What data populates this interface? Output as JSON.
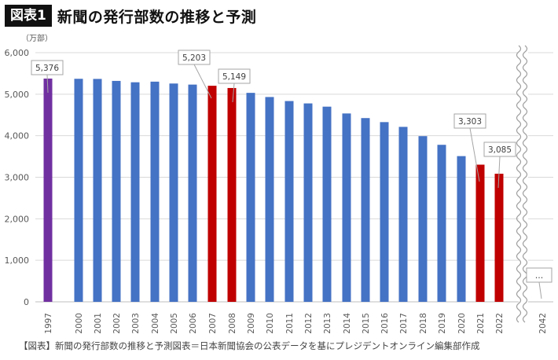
{
  "header": {
    "badge": "図表1",
    "title": "新聞の発行部数の推移と予測"
  },
  "source": "【図表】新聞の発行部数の推移と予測図表＝日本新聞協会の公表データを基にプレジデントオンライン編集部作成",
  "colors": {
    "default_bar": "#4472C4",
    "first_bar": "#7030A0",
    "highlight_bar": "#C00000",
    "grid": "#D9D9D9",
    "axis_text": "#595959"
  },
  "chart_data": {
    "type": "bar",
    "ylabel": "（万部）",
    "ylim": [
      0,
      6000
    ],
    "yticks": [
      "0",
      "1,000",
      "2,000",
      "3,000",
      "4,000",
      "5,000",
      "6,000"
    ],
    "grid": true,
    "axis_break": true,
    "categories": [
      "1997",
      "2000",
      "2001",
      "2002",
      "2003",
      "2004",
      "2005",
      "2006",
      "2007",
      "2008",
      "2009",
      "2010",
      "2011",
      "2012",
      "2013",
      "2014",
      "2015",
      "2016",
      "2017",
      "2018",
      "2019",
      "2020",
      "2021",
      "2022",
      "2042"
    ],
    "values": [
      5376,
      5371,
      5368,
      5320,
      5287,
      5302,
      5257,
      5231,
      5203,
      5149,
      5032,
      4932,
      4835,
      4778,
      4700,
      4536,
      4425,
      4328,
      4213,
      3990,
      3781,
      3509,
      3303,
      3085,
      null
    ],
    "bar_colors": [
      "first",
      "default",
      "default",
      "default",
      "default",
      "default",
      "default",
      "default",
      "highlight",
      "highlight",
      "default",
      "default",
      "default",
      "default",
      "default",
      "default",
      "default",
      "default",
      "default",
      "default",
      "default",
      "default",
      "highlight",
      "highlight",
      "none"
    ],
    "callouts": [
      {
        "category": "1997",
        "label": "5,376"
      },
      {
        "category": "2007",
        "label": "5,203"
      },
      {
        "category": "2008",
        "label": "5,149"
      },
      {
        "category": "2021",
        "label": "3,303"
      },
      {
        "category": "2022",
        "label": "3,085"
      },
      {
        "category": "2042",
        "label": "…"
      }
    ]
  }
}
